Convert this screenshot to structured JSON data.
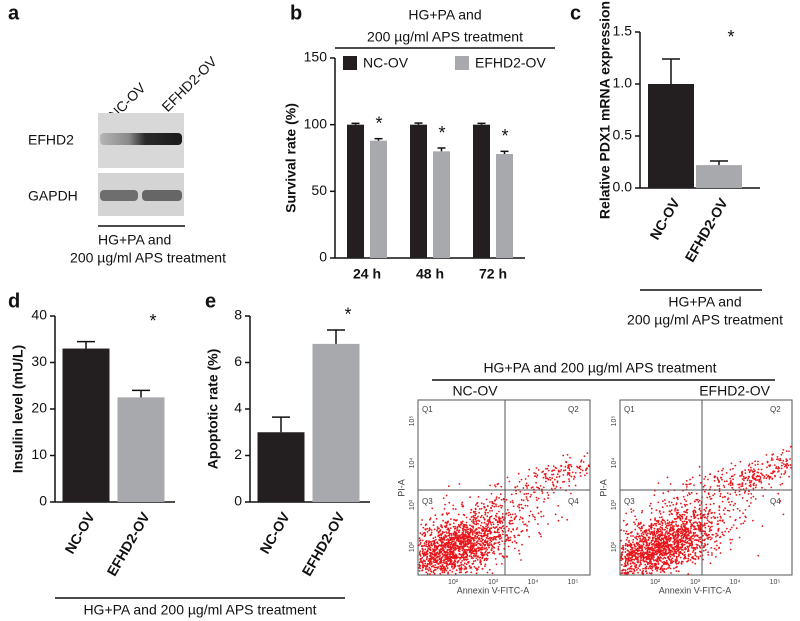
{
  "blot": {
    "label": "a",
    "lanes": [
      "NC-OV",
      "EFHD2-OV"
    ],
    "rows": [
      "EFHD2",
      "GAPDH"
    ],
    "treatment": [
      "HG+PA and",
      "200 µg/ml APS treatment"
    ]
  },
  "chart_data": [
    {
      "type": "bar",
      "label": "b",
      "header": [
        "HG+PA and",
        "200 µg/ml APS treatment"
      ],
      "ylabel": "Survival rate (%)",
      "categories": [
        "24 h",
        "48 h",
        "72 h"
      ],
      "series": [
        {
          "name": "NC-OV",
          "color": "#231f20",
          "values": [
            100,
            100,
            100
          ],
          "errors": [
            1,
            1.2,
            1
          ]
        },
        {
          "name": "EFHD2-OV",
          "color": "#a7a9ac",
          "values": [
            88,
            80,
            78
          ],
          "errors": [
            1.5,
            2.5,
            2
          ]
        }
      ],
      "significance": [
        "*",
        "*",
        "*"
      ],
      "ylim": [
        0,
        150
      ],
      "yticks": [
        0,
        50,
        100,
        150
      ],
      "legend": "top"
    },
    {
      "type": "bar",
      "label": "c",
      "ylabel": "Relative PDX1 mRNA expression",
      "categories": [
        "NC-OV",
        "EFHD2-OV"
      ],
      "values": [
        1.0,
        0.22
      ],
      "errors": [
        0.24,
        0.04
      ],
      "colors": [
        "#231f20",
        "#a7a9ac"
      ],
      "annotation": "*",
      "ylim": [
        0,
        1.5
      ],
      "yticks": [
        {
          "value": 0,
          "label": "0.0"
        },
        {
          "value": 0.5,
          "label": "0.5"
        },
        {
          "value": 1,
          "label": "1.0"
        },
        {
          "value": 1.5,
          "label": "1.5"
        }
      ],
      "footer": [
        "HG+PA and",
        "200 µg/ml APS treatment"
      ]
    },
    {
      "type": "bar",
      "label": "d",
      "ylabel": "Insulin level (mU/L)",
      "categories": [
        "NC-OV",
        "EFHD2-OV"
      ],
      "values": [
        33,
        22.5
      ],
      "errors": [
        1.5,
        1.5
      ],
      "colors": [
        "#231f20",
        "#a7a9ac"
      ],
      "annotation": "*",
      "ylim": [
        0,
        40
      ],
      "yticks": [
        0,
        10,
        20,
        30,
        40
      ]
    },
    {
      "type": "bar",
      "label": "e",
      "ylabel": "Apoptotic rate (%)",
      "categories": [
        "NC-OV",
        "EFHD2-OV"
      ],
      "values": [
        3,
        6.8
      ],
      "errors": [
        0.65,
        0.6
      ],
      "colors": [
        "#231f20",
        "#a7a9ac"
      ],
      "annotation": "*",
      "ylim": [
        0,
        8
      ],
      "yticks": [
        0,
        2,
        4,
        6,
        8
      ]
    }
  ],
  "bottom_treatment": "HG+PA and 200 µg/ml APS treatment",
  "flow": {
    "header": "HG+PA and 200 µg/ml APS treatment",
    "plots": [
      "NC-OV",
      "EFHD2-OV"
    ],
    "quadrants": [
      "Q1",
      "Q2",
      "Q3",
      "Q4"
    ],
    "xlabel": "Annexin V-FITC-A",
    "ylabel": "PI-A",
    "ticks": [
      "10²",
      "10³",
      "10⁴",
      "10⁵"
    ]
  }
}
